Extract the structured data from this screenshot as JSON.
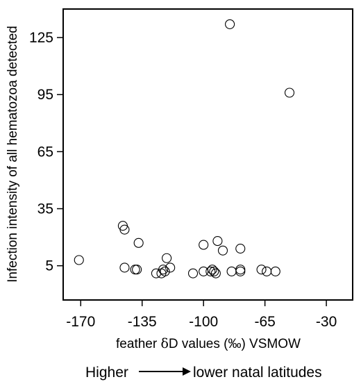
{
  "chart_data": {
    "type": "scatter",
    "xlabel_prefix": "feather ",
    "xlabel_delta": "δ",
    "xlabel_suffix": "D values (‰) VSMOW",
    "ylabel": "Infection intensity of all hematozoa detected",
    "xlim": [
      -180,
      -15
    ],
    "ylim": [
      -13,
      140
    ],
    "xticks": [
      -170,
      -135,
      -100,
      -65,
      -30
    ],
    "yticks": [
      5,
      35,
      65,
      95,
      125
    ],
    "grid": false,
    "marker": "open-circle",
    "points": [
      {
        "x": -171,
        "y": 8
      },
      {
        "x": -146,
        "y": 26
      },
      {
        "x": -145,
        "y": 24
      },
      {
        "x": -145,
        "y": 4
      },
      {
        "x": -139,
        "y": 3
      },
      {
        "x": -138,
        "y": 3
      },
      {
        "x": -137,
        "y": 17
      },
      {
        "x": -127,
        "y": 1
      },
      {
        "x": -124,
        "y": 1
      },
      {
        "x": -123,
        "y": 3
      },
      {
        "x": -122,
        "y": 2
      },
      {
        "x": -121,
        "y": 9
      },
      {
        "x": -119,
        "y": 4
      },
      {
        "x": -106,
        "y": 1
      },
      {
        "x": -100,
        "y": 16
      },
      {
        "x": -100,
        "y": 2
      },
      {
        "x": -96,
        "y": 2
      },
      {
        "x": -95,
        "y": 3
      },
      {
        "x": -94,
        "y": 2
      },
      {
        "x": -93,
        "y": 1
      },
      {
        "x": -92,
        "y": 18
      },
      {
        "x": -89,
        "y": 13
      },
      {
        "x": -85,
        "y": 132
      },
      {
        "x": -84,
        "y": 2
      },
      {
        "x": -79,
        "y": 2
      },
      {
        "x": -79,
        "y": 3
      },
      {
        "x": -79,
        "y": 14
      },
      {
        "x": -67,
        "y": 3
      },
      {
        "x": -64,
        "y": 2
      },
      {
        "x": -59,
        "y": 2
      },
      {
        "x": -51,
        "y": 96
      }
    ]
  },
  "footer": {
    "left_text": "Higher",
    "right_text": "lower natal latitudes"
  }
}
